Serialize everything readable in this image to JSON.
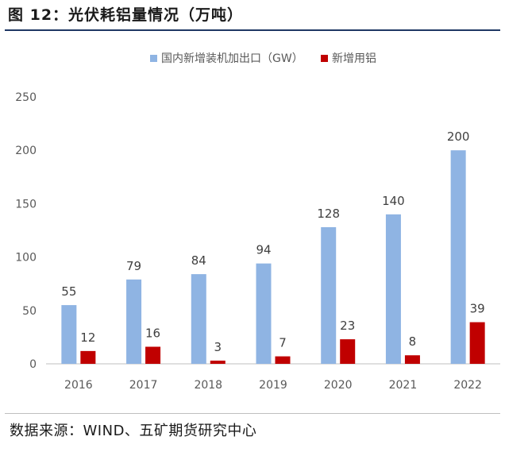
{
  "figure": {
    "title": "图 12：光伏耗铝量情况（万吨）",
    "source": "数据来源：WIND、五矿期货研究中心"
  },
  "colors": {
    "series1": "#8fb4e3",
    "series2": "#c00000",
    "axis": "#bfbfbf",
    "tick_text": "#595959"
  },
  "chart_data": {
    "type": "bar",
    "categories": [
      "2016",
      "2017",
      "2018",
      "2019",
      "2020",
      "2021",
      "2022"
    ],
    "series": [
      {
        "name": "国内新增装机加出口（GW）",
        "values": [
          55,
          79,
          84,
          94,
          128,
          140,
          200
        ]
      },
      {
        "name": "新增用铝",
        "values": [
          12,
          16,
          3,
          7,
          23,
          8,
          39
        ]
      }
    ],
    "ylim": [
      0,
      250
    ],
    "yticks": [
      0,
      50,
      100,
      150,
      200,
      250
    ],
    "grid": false,
    "legend": "top-center",
    "data_labels": true
  }
}
